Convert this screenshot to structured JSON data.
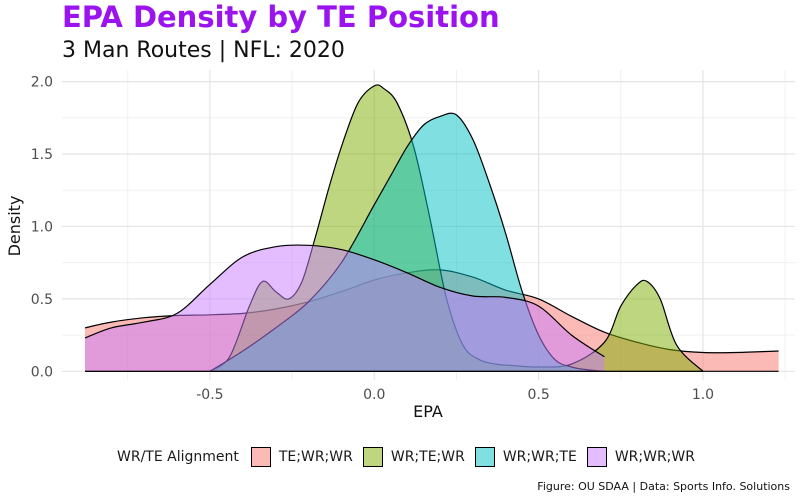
{
  "title": "EPA Density by TE Position",
  "subtitle": "3 Man Routes | NFL: 2020",
  "caption": "Figure: OU SDAA | Data: Sports Info. Solutions",
  "chart_data": {
    "type": "area",
    "chart_kind": "density",
    "xlabel": "EPA",
    "ylabel": "Density",
    "xlim": [
      -0.95,
      1.28
    ],
    "ylim": [
      -0.06,
      2.08
    ],
    "x_ticks": [
      -0.5,
      0.0,
      0.5,
      1.0
    ],
    "x_tick_labels": [
      "-0.5",
      "0.0",
      "0.5",
      "1.0"
    ],
    "y_ticks": [
      0.0,
      0.5,
      1.0,
      1.5,
      2.0
    ],
    "y_tick_labels": [
      "0.0",
      "0.5",
      "1.0",
      "1.5",
      "2.0"
    ],
    "grid": true,
    "legend_position": "bottom",
    "legend_title": "WR/TE Alignment",
    "series": [
      {
        "name": "TE;WR;WR",
        "color": "#F8766D",
        "x": [
          -0.88,
          -0.8,
          -0.7,
          -0.6,
          -0.5,
          -0.4,
          -0.3,
          -0.2,
          -0.1,
          0.0,
          0.1,
          0.2,
          0.3,
          0.4,
          0.5,
          0.6,
          0.7,
          0.8,
          0.9,
          1.0,
          1.1,
          1.23
        ],
        "y": [
          0.3,
          0.34,
          0.37,
          0.385,
          0.39,
          0.4,
          0.43,
          0.48,
          0.55,
          0.63,
          0.68,
          0.7,
          0.65,
          0.56,
          0.5,
          0.38,
          0.27,
          0.2,
          0.15,
          0.13,
          0.13,
          0.14
        ]
      },
      {
        "name": "WR;TE;WR",
        "color": "#7CAE00",
        "x": [
          -0.5,
          -0.44,
          -0.38,
          -0.34,
          -0.3,
          -0.26,
          -0.22,
          -0.18,
          -0.14,
          -0.1,
          -0.05,
          0.0,
          0.03,
          0.07,
          0.12,
          0.17,
          0.22,
          0.27,
          0.32,
          0.37,
          0.42,
          0.5,
          0.6,
          0.7,
          0.75,
          0.8,
          0.83,
          0.87,
          0.92,
          1.0
        ],
        "y": [
          0.0,
          0.1,
          0.45,
          0.62,
          0.55,
          0.5,
          0.62,
          0.92,
          1.25,
          1.55,
          1.85,
          1.97,
          1.95,
          1.85,
          1.55,
          1.05,
          0.5,
          0.18,
          0.08,
          0.05,
          0.04,
          0.03,
          0.05,
          0.2,
          0.45,
          0.6,
          0.62,
          0.5,
          0.18,
          0.0
        ]
      },
      {
        "name": "WR;WR;TE",
        "color": "#00BFC4",
        "x": [
          -0.5,
          -0.4,
          -0.3,
          -0.2,
          -0.1,
          0.0,
          0.05,
          0.1,
          0.15,
          0.2,
          0.25,
          0.3,
          0.35,
          0.4,
          0.45,
          0.5,
          0.55,
          0.6,
          0.65,
          0.7
        ],
        "y": [
          0.0,
          0.14,
          0.3,
          0.48,
          0.75,
          1.15,
          1.35,
          1.55,
          1.7,
          1.76,
          1.77,
          1.6,
          1.3,
          0.95,
          0.55,
          0.25,
          0.08,
          0.03,
          0.01,
          0.0
        ]
      },
      {
        "name": "WR;WR;WR",
        "color": "#C77CFF",
        "x": [
          -0.88,
          -0.8,
          -0.7,
          -0.6,
          -0.5,
          -0.4,
          -0.3,
          -0.2,
          -0.1,
          0.0,
          0.1,
          0.2,
          0.3,
          0.4,
          0.5,
          0.6,
          0.7
        ],
        "y": [
          0.23,
          0.3,
          0.34,
          0.4,
          0.6,
          0.79,
          0.86,
          0.87,
          0.84,
          0.77,
          0.68,
          0.58,
          0.52,
          0.51,
          0.45,
          0.25,
          0.1
        ]
      }
    ]
  }
}
